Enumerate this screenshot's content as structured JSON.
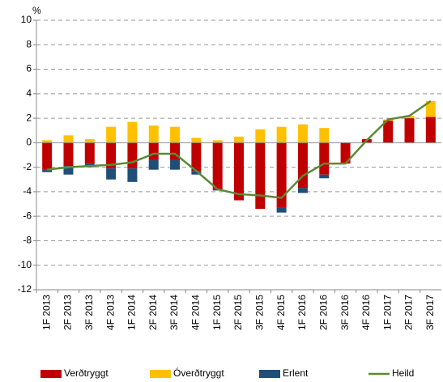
{
  "chart_data": {
    "type": "bar",
    "stacked": true,
    "y_unit_label": "%",
    "categories": [
      "1F 2013",
      "2F 2013",
      "3F 2013",
      "4F 2013",
      "1F 2014",
      "2F 2014",
      "3F 2014",
      "4F 2014",
      "1F 2015",
      "2F 2015",
      "3F 2015",
      "4F 2015",
      "1F 2016",
      "2F 2016",
      "3F 2016",
      "4F 2016",
      "1F 2017",
      "2F 2017",
      "3F 2017"
    ],
    "series": [
      {
        "name": "Verðtryggt",
        "color": "#c00000",
        "values": [
          -2.2,
          -1.9,
          -1.7,
          -2.1,
          -2.1,
          -1.4,
          -1.4,
          -2.3,
          -3.8,
          -4.7,
          -5.4,
          -5.3,
          -3.7,
          -2.6,
          -1.7,
          0.3,
          1.8,
          2.0,
          2.1
        ]
      },
      {
        "name": "Óverðtryggt",
        "color": "#ffc000",
        "values": [
          0.2,
          0.6,
          0.3,
          1.3,
          1.7,
          1.4,
          1.3,
          0.4,
          0.2,
          0.5,
          1.1,
          1.3,
          1.5,
          1.2,
          0,
          0,
          0.1,
          0.2,
          1.3
        ]
      },
      {
        "name": "Erlent",
        "color": "#1f4e79",
        "values": [
          -0.2,
          -0.7,
          -0.3,
          -0.9,
          -1.1,
          -0.8,
          -0.8,
          -0.3,
          -0.1,
          0,
          0,
          -0.4,
          -0.4,
          -0.3,
          0,
          0,
          0,
          0,
          0
        ]
      },
      {
        "name": "Heild",
        "color": "#5a8a35",
        "type": "line",
        "values": [
          -2.2,
          -2.0,
          -1.9,
          -1.8,
          -1.6,
          -0.9,
          -0.9,
          -2.3,
          -3.8,
          -4.2,
          -4.3,
          -4.5,
          -2.7,
          -1.7,
          -1.7,
          0.2,
          1.9,
          2.2,
          3.4
        ]
      }
    ],
    "ylim": [
      -12,
      10
    ],
    "yticks": [
      -12,
      -10,
      -8,
      -6,
      -4,
      -2,
      0,
      2,
      4,
      6,
      8,
      10
    ],
    "grid": true,
    "legend": "bottom"
  }
}
